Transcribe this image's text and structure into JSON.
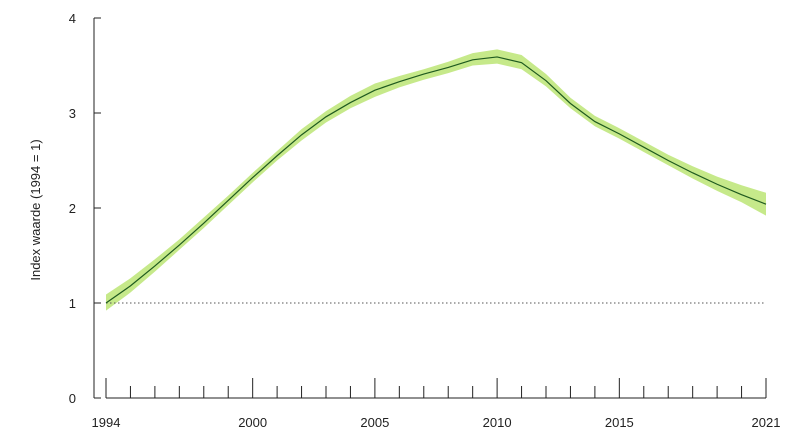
{
  "chart_data": {
    "type": "line",
    "title": "",
    "xlabel": "",
    "ylabel": "Index waarde (1994 = 1)",
    "xlim": [
      1994,
      2021
    ],
    "ylim": [
      0,
      4
    ],
    "x_tick_labels": [
      "1994",
      "2000",
      "2005",
      "2010",
      "2015",
      "2021"
    ],
    "y_tick_labels": [
      "0",
      "1",
      "2",
      "3",
      "4"
    ],
    "reference_line": 1,
    "grid": false,
    "legend": "none",
    "series": [
      {
        "x": [
          1994,
          1995,
          1996,
          1997,
          1998,
          1999,
          2000,
          2001,
          2002,
          2003,
          2004,
          2005,
          2006,
          2007,
          2008,
          2009,
          2010,
          2011,
          2012,
          2013,
          2014,
          2015,
          2016,
          2017,
          2018,
          2019,
          2020,
          2021
        ],
        "values": [
          1.0,
          1.18,
          1.39,
          1.61,
          1.84,
          2.08,
          2.32,
          2.55,
          2.77,
          2.96,
          3.11,
          3.24,
          3.33,
          3.41,
          3.48,
          3.56,
          3.59,
          3.53,
          3.34,
          3.1,
          2.91,
          2.78,
          2.64,
          2.5,
          2.37,
          2.25,
          2.14,
          2.04
        ],
        "lower": [
          0.92,
          1.11,
          1.33,
          1.56,
          1.79,
          2.03,
          2.27,
          2.5,
          2.71,
          2.9,
          3.05,
          3.17,
          3.27,
          3.35,
          3.42,
          3.5,
          3.52,
          3.46,
          3.28,
          3.05,
          2.86,
          2.73,
          2.59,
          2.45,
          2.31,
          2.18,
          2.06,
          1.92
        ],
        "upper": [
          1.09,
          1.26,
          1.46,
          1.67,
          1.9,
          2.13,
          2.37,
          2.6,
          2.83,
          3.02,
          3.18,
          3.31,
          3.39,
          3.46,
          3.54,
          3.63,
          3.67,
          3.61,
          3.41,
          3.16,
          2.97,
          2.84,
          2.7,
          2.56,
          2.44,
          2.33,
          2.24,
          2.16
        ]
      }
    ]
  },
  "colors": {
    "line": "#1f5a1f",
    "band": "#c6e98a",
    "axis": "#222222",
    "reference": "#555555"
  }
}
